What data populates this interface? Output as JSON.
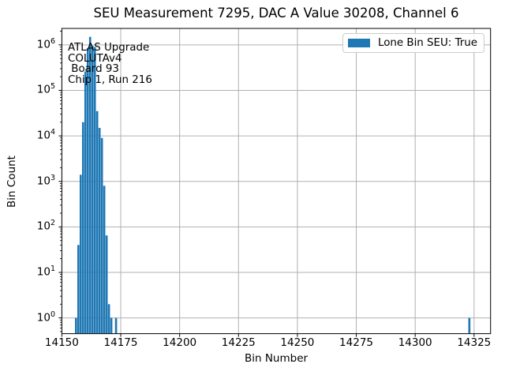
{
  "title": "SEU Measurement 7295, DAC A Value 30208, Channel 6",
  "legend": {
    "label": "Lone Bin SEU: True",
    "swatch_color": "#1f77b4",
    "position": "upper right"
  },
  "annotation": {
    "lines": [
      "ATLAS Upgrade",
      "COLUTAv4",
      " Board 93",
      "Chip 1, Run 216"
    ]
  },
  "chart_data": {
    "type": "bar",
    "title": "SEU Measurement 7295, DAC A Value 30208, Channel 6",
    "xlabel": "Bin Number",
    "ylabel": "Bin Count",
    "y_scale": "log",
    "grid": true,
    "xlim": [
      14150,
      14332
    ],
    "ylim": [
      0.45,
      2300000
    ],
    "x_ticks": [
      14150,
      14175,
      14200,
      14225,
      14250,
      14275,
      14300,
      14325
    ],
    "y_tick_exponents": [
      0,
      1,
      2,
      3,
      4,
      5,
      6
    ],
    "bar_color": "#1f77b4",
    "grid_color": "#b0b0b0",
    "bin_width": 1,
    "series": [
      {
        "name": "Lone Bin SEU: True",
        "bins": [
          14156,
          14157,
          14158,
          14159,
          14160,
          14161,
          14162,
          14163,
          14164,
          14165,
          14166,
          14167,
          14168,
          14169,
          14170,
          14171,
          14173,
          14323
        ],
        "counts": [
          1,
          40,
          1400,
          20000,
          260000,
          850000,
          1500000,
          950000,
          900000,
          35000,
          15000,
          9000,
          800,
          65,
          2,
          1,
          1,
          1
        ]
      }
    ]
  }
}
